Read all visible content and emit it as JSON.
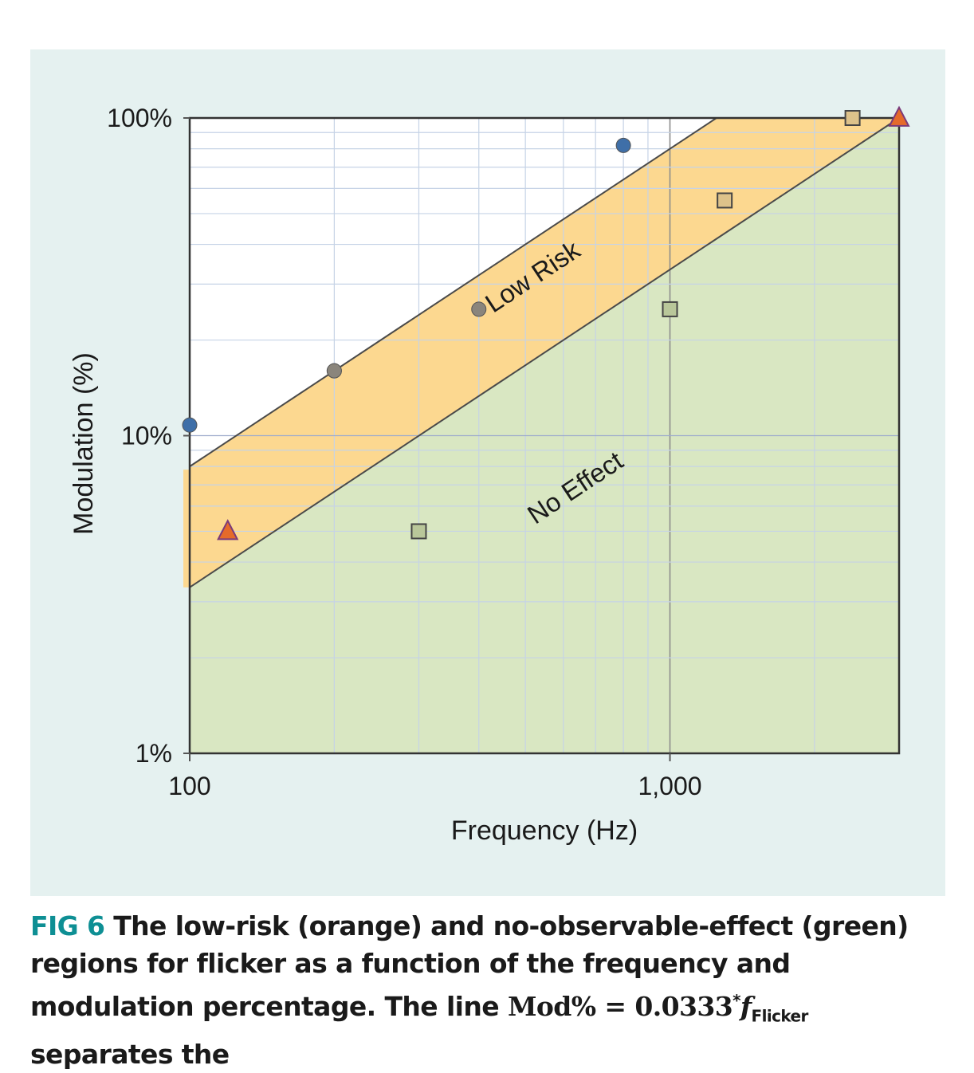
{
  "chart_data": {
    "type": "scatter",
    "title": "",
    "xlabel": "Frequency (Hz)",
    "ylabel": "Modulation (%)",
    "x_scale": "log",
    "y_scale": "log",
    "xlim": [
      100,
      3000
    ],
    "ylim": [
      1,
      100
    ],
    "x_ticks": [
      100,
      1000
    ],
    "x_tick_labels": [
      "100",
      "1,000"
    ],
    "y_ticks": [
      1,
      10,
      100
    ],
    "y_tick_labels": [
      "1%",
      "10%",
      "100%"
    ],
    "grid": true,
    "legend": "none",
    "regions": [
      {
        "label": "Low Risk",
        "color": "#fcd890",
        "upper_boundary": [
          [
            100,
            8
          ],
          [
            1250,
            100
          ]
        ],
        "lower_boundary": [
          [
            100,
            3.33
          ],
          [
            3000,
            100
          ]
        ]
      },
      {
        "label": "No Effect",
        "color": "#d9e7c2",
        "upper_boundary": [
          [
            100,
            3.33
          ],
          [
            3000,
            100
          ]
        ]
      }
    ],
    "series": [
      {
        "marker": "circle",
        "color": "#3f6fa8",
        "points": [
          [
            100,
            10.8
          ],
          [
            200,
            16
          ],
          [
            800,
            82
          ]
        ]
      },
      {
        "marker": "circle",
        "color": "#8a857c",
        "points": [
          [
            200,
            16
          ],
          [
            400,
            25
          ]
        ]
      },
      {
        "marker": "square",
        "color": "#b9c79a",
        "points": [
          [
            300,
            5
          ],
          [
            1000,
            25
          ]
        ]
      },
      {
        "marker": "square",
        "color": "#ddc28a",
        "points": [
          [
            1300,
            55
          ],
          [
            2400,
            100
          ]
        ]
      },
      {
        "marker": "triangle",
        "color": "#e56a2a",
        "points": [
          [
            120,
            5
          ],
          [
            3000,
            100
          ]
        ]
      }
    ]
  },
  "caption": {
    "fig_label": "FIG 6",
    "text_1": "The low-risk (orange) and no-observable-effect (green) regions for flicker as a function of the frequency and modulation percentage. The line ",
    "math_lhs": "Mod%",
    "math_eq": " = ",
    "math_const": "0.0333",
    "math_sup": "*",
    "math_var": "f",
    "math_sub": "Flicker",
    "text_2": " separates the"
  }
}
